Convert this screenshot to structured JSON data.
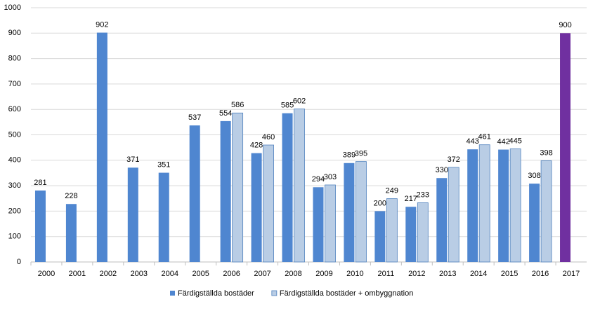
{
  "chart_data": {
    "type": "bar",
    "categories": [
      "2000",
      "2001",
      "2002",
      "2003",
      "2004",
      "2005",
      "2006",
      "2007",
      "2008",
      "2009",
      "2010",
      "2011",
      "2012",
      "2013",
      "2014",
      "2015",
      "2016",
      "2017"
    ],
    "series": [
      {
        "name": "Färdigställda bostäder",
        "color": "#4f86d0",
        "colors": [
          "#4f86d0",
          "#4f86d0",
          "#4f86d0",
          "#4f86d0",
          "#4f86d0",
          "#4f86d0",
          "#4f86d0",
          "#4f86d0",
          "#4f86d0",
          "#4f86d0",
          "#4f86d0",
          "#4f86d0",
          "#4f86d0",
          "#4f86d0",
          "#4f86d0",
          "#4f86d0",
          "#4f86d0",
          "#7030a0"
        ],
        "values": [
          281,
          228,
          902,
          371,
          351,
          537,
          554,
          428,
          585,
          294,
          389,
          200,
          217,
          330,
          443,
          442,
          308,
          900
        ]
      },
      {
        "name": "Färdigställda bostäder + ombyggnation",
        "color": "#b9cde5",
        "values": [
          null,
          null,
          null,
          null,
          null,
          null,
          586,
          460,
          602,
          303,
          395,
          249,
          233,
          372,
          461,
          445,
          398,
          null
        ]
      }
    ],
    "ylim": [
      0,
      1000
    ],
    "yticks": [
      0,
      100,
      200,
      300,
      400,
      500,
      600,
      700,
      800,
      900,
      1000
    ],
    "grid": true,
    "legend": "bottom"
  }
}
